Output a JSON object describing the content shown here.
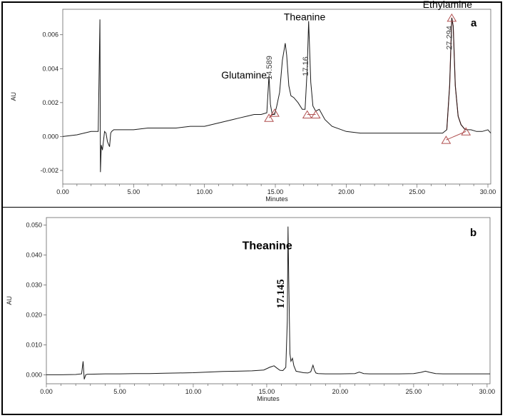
{
  "chart_data": [
    {
      "type": "line",
      "panel_label": "a",
      "xlabel": "Minutes",
      "ylabel": "AU",
      "xlim": [
        0,
        30.2
      ],
      "ylim": [
        -0.0028,
        0.0075
      ],
      "x_ticks": [
        "0.00",
        "5.00",
        "10.00",
        "15.00",
        "20.00",
        "25.00",
        "30.00"
      ],
      "x_tick_values": [
        0,
        5,
        10,
        15,
        20,
        25,
        30
      ],
      "y_ticks": [
        "-0.002",
        "0.000",
        "0.002",
        "0.004",
        "0.006"
      ],
      "y_tick_values": [
        -0.002,
        0,
        0.002,
        0.004,
        0.006
      ],
      "series": [
        {
          "color": "#1a1a1a",
          "x": [
            0,
            1,
            2,
            2.5,
            2.62,
            2.66,
            2.72,
            2.8,
            2.95,
            3.05,
            3.15,
            3.3,
            3.38,
            3.45,
            3.6,
            4,
            5,
            6,
            7,
            8,
            9,
            10,
            11,
            12,
            12.5,
            13,
            13.5,
            14,
            14.4,
            14.55,
            14.65,
            14.78,
            14.95,
            15.1,
            15.3,
            15.5,
            15.7,
            15.8,
            15.95,
            16.1,
            16.3,
            16.6,
            16.9,
            17.1,
            17.25,
            17.35,
            17.5,
            17.65,
            17.85,
            18.1,
            18.5,
            19,
            20,
            21,
            22,
            23,
            24,
            25,
            26,
            26.8,
            27.1,
            27.3,
            27.45,
            27.55,
            27.7,
            27.9,
            28.1,
            28.4,
            28.8,
            29.2,
            29.6,
            30,
            30.2
          ],
          "y": [
            0.0,
            0.0001,
            0.0003,
            0.0003,
            0.0069,
            -0.0021,
            -0.0005,
            -0.0008,
            0.0003,
            0.0002,
            -0.0003,
            -0.0006,
            0.0002,
            0.0003,
            0.0004,
            0.0004,
            0.0004,
            0.0005,
            0.0005,
            0.0005,
            0.0006,
            0.0006,
            0.0008,
            0.001,
            0.0011,
            0.0012,
            0.0013,
            0.0013,
            0.0014,
            0.0036,
            0.0019,
            0.0013,
            0.0013,
            0.0018,
            0.0026,
            0.0045,
            0.0055,
            0.0048,
            0.003,
            0.0024,
            0.0023,
            0.002,
            0.0016,
            0.0016,
            0.004,
            0.0068,
            0.0032,
            0.0018,
            0.0015,
            0.0016,
            0.001,
            0.0006,
            0.0003,
            0.0002,
            0.0002,
            0.0002,
            0.0002,
            0.0002,
            0.0002,
            0.0002,
            0.0004,
            0.003,
            0.007,
            0.0065,
            0.003,
            0.0012,
            0.0007,
            0.0004,
            0.0004,
            0.0003,
            0.0003,
            0.0004,
            0.0002
          ]
        }
      ],
      "integration_baselines": [
        {
          "x": [
            14.55,
            14.95
          ],
          "y": [
            0.0011,
            0.0014
          ]
        },
        {
          "x": [
            17.25,
            17.85
          ],
          "y": [
            0.0013,
            0.0013
          ]
        },
        {
          "x": [
            27.05,
            28.45
          ],
          "y": [
            -0.0002,
            0.0003
          ]
        }
      ],
      "integration_markers": [
        {
          "x": 14.55,
          "y": 0.0011
        },
        {
          "x": 14.95,
          "y": 0.0014
        },
        {
          "x": 17.25,
          "y": 0.0013
        },
        {
          "x": 17.85,
          "y": 0.0013
        },
        {
          "x": 27.05,
          "y": -0.0002
        },
        {
          "x": 28.45,
          "y": 0.0003
        },
        {
          "x": 27.45,
          "y": 0.007
        }
      ],
      "peak_labels": [
        {
          "text": "Glutamine",
          "x": 14.55,
          "y": 0.0036
        },
        {
          "text": "Theanine",
          "x": 15.8,
          "y": 0.0055
        },
        {
          "text": "Ethylamine",
          "x": 27.45,
          "y": 0.007
        }
      ],
      "retention_labels": [
        {
          "text": "14.589",
          "x": 14.589
        },
        {
          "text": "17.16",
          "x": 17.16
        },
        {
          "text": "27.294",
          "x": 27.294
        }
      ]
    },
    {
      "type": "line",
      "panel_label": "b",
      "xlabel": "Minutes",
      "ylabel": "AU",
      "xlim": [
        0,
        30.2
      ],
      "ylim": [
        -0.003,
        0.0525
      ],
      "x_ticks": [
        "0.00",
        "5.00",
        "10.00",
        "15.00",
        "20.00",
        "25.00",
        "30.00"
      ],
      "x_tick_values": [
        0,
        5,
        10,
        15,
        20,
        25,
        30
      ],
      "y_ticks": [
        "0.000",
        "0.010",
        "0.020",
        "0.030",
        "0.040",
        "0.050"
      ],
      "y_tick_values": [
        0,
        0.01,
        0.02,
        0.03,
        0.04,
        0.05
      ],
      "series": [
        {
          "color": "#1a1a1a",
          "x": [
            0,
            1,
            2,
            2.4,
            2.5,
            2.58,
            2.68,
            2.8,
            3,
            4,
            5,
            6,
            7,
            8,
            9,
            10,
            11,
            12,
            13,
            14,
            14.8,
            15.2,
            15.5,
            15.7,
            15.9,
            16.1,
            16.3,
            16.4,
            16.45,
            16.5,
            16.58,
            16.65,
            16.75,
            16.85,
            17,
            17.2,
            17.5,
            17.8,
            18,
            18.15,
            18.25,
            18.35,
            18.5,
            19,
            20,
            21,
            21.3,
            21.6,
            22,
            23,
            24,
            25,
            25.5,
            25.8,
            26.1,
            26.5,
            27,
            28,
            29,
            30,
            30.2
          ],
          "y": [
            0.0,
            0.0,
            0.0001,
            0.0003,
            0.0045,
            -0.0015,
            0.0,
            0.0002,
            0.0002,
            0.0003,
            0.0003,
            0.0004,
            0.0004,
            0.0005,
            0.0006,
            0.0007,
            0.0009,
            0.0011,
            0.0012,
            0.0013,
            0.0016,
            0.0025,
            0.003,
            0.0022,
            0.0015,
            0.0014,
            0.0025,
            0.018,
            0.0495,
            0.032,
            0.007,
            0.0045,
            0.0055,
            0.003,
            0.0012,
            0.001,
            0.0007,
            0.0006,
            0.001,
            0.0032,
            0.0015,
            0.0006,
            0.0004,
            0.0003,
            0.0003,
            0.0004,
            0.0009,
            0.0004,
            0.0003,
            0.0003,
            0.0003,
            0.0004,
            0.0008,
            0.0012,
            0.0008,
            0.0004,
            0.0003,
            0.0003,
            0.0003,
            0.0003,
            0.0003
          ]
        }
      ],
      "peak_labels": [
        {
          "text": "Theanine",
          "x": 16.45,
          "y": 0.0495
        }
      ],
      "retention_labels": [
        {
          "text": "17.145",
          "x": 16.45
        }
      ]
    }
  ]
}
